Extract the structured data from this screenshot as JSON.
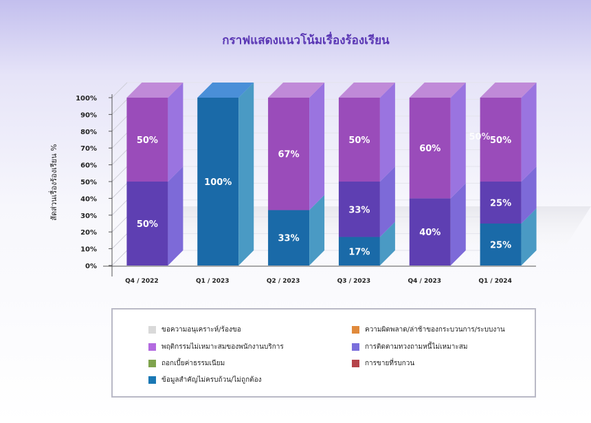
{
  "chart_data": {
    "type": "bar",
    "stacked": true,
    "percent_stacked": true,
    "three_d": true,
    "title": "กราฟแสดงแนวโน้มเรื่องร้องเรียน",
    "xlabel": "",
    "ylabel": "สัดส่วนเรื่องร้องเรียน %",
    "ylim": [
      0,
      100
    ],
    "yticks": [
      "0%",
      "10%",
      "20%",
      "30%",
      "40%",
      "50%",
      "60%",
      "70%",
      "80%",
      "90%",
      "100%"
    ],
    "categories": [
      "Q4 / 2022",
      "Q1 / 2023",
      "Q2 / 2023",
      "Q3 / 2023",
      "Q4 / 2023",
      "Q1 / 2024"
    ],
    "series": [
      {
        "name": "ข้อมูลสำคัญไม่ครบถ้วน/ไม่ถูกต้อง",
        "color": "#1a6aa8",
        "side_color": "#4a9ac4",
        "top_color": "#4a8fd8",
        "values": [
          0,
          100,
          33,
          17,
          0,
          25
        ],
        "labels": [
          "",
          "100%",
          "33%",
          "17%",
          "",
          "25%"
        ]
      },
      {
        "name": "การติดตามทวงถามหนี้ไม่เหมาะสม",
        "color": "#5e3fb2",
        "side_color": "#7d6ad8",
        "top_color": "#7a63d0",
        "values": [
          50,
          0,
          0,
          33,
          40,
          25
        ],
        "labels": [
          "50%",
          "",
          "",
          "33%",
          "40%",
          "25%"
        ]
      },
      {
        "name": "พฤติกรรมไม่เหมาะสมของพนักงานบริการ",
        "color": "#9a4cba",
        "side_color": "#9a74e0",
        "top_color": "#c08ad8",
        "values": [
          50,
          0,
          67,
          50,
          60,
          50
        ],
        "labels": [
          "50%",
          "",
          "67%",
          "50%",
          "60%",
          "50%"
        ]
      }
    ],
    "extra_label": "50%",
    "legend": {
      "position": "bottom",
      "entries": [
        {
          "name": "ขอความอนุเคราะห์/ร้องขอ",
          "color": "#d9d9d9"
        },
        {
          "name": "ความผิดพลาด/ล่าช้าของกระบวนการ/ระบบงาน",
          "color": "#e08a3c"
        },
        {
          "name": "พฤติกรรมไม่เหมาะสมของพนักงานบริการ",
          "color": "#b36ae0"
        },
        {
          "name": "การติดตามทวงถามหนี้ไม่เหมาะสม",
          "color": "#7b6fdc"
        },
        {
          "name": "ถอกเบี้ยค่าธรรมเนียม",
          "color": "#7fa34d"
        },
        {
          "name": "การขายที่รบกวน",
          "color": "#b5434a"
        },
        {
          "name": "ข้อมูลสำคัญไม่ครบถ้วน/ไม่ถูกต้อง",
          "color": "#1a78b4"
        }
      ]
    }
  }
}
